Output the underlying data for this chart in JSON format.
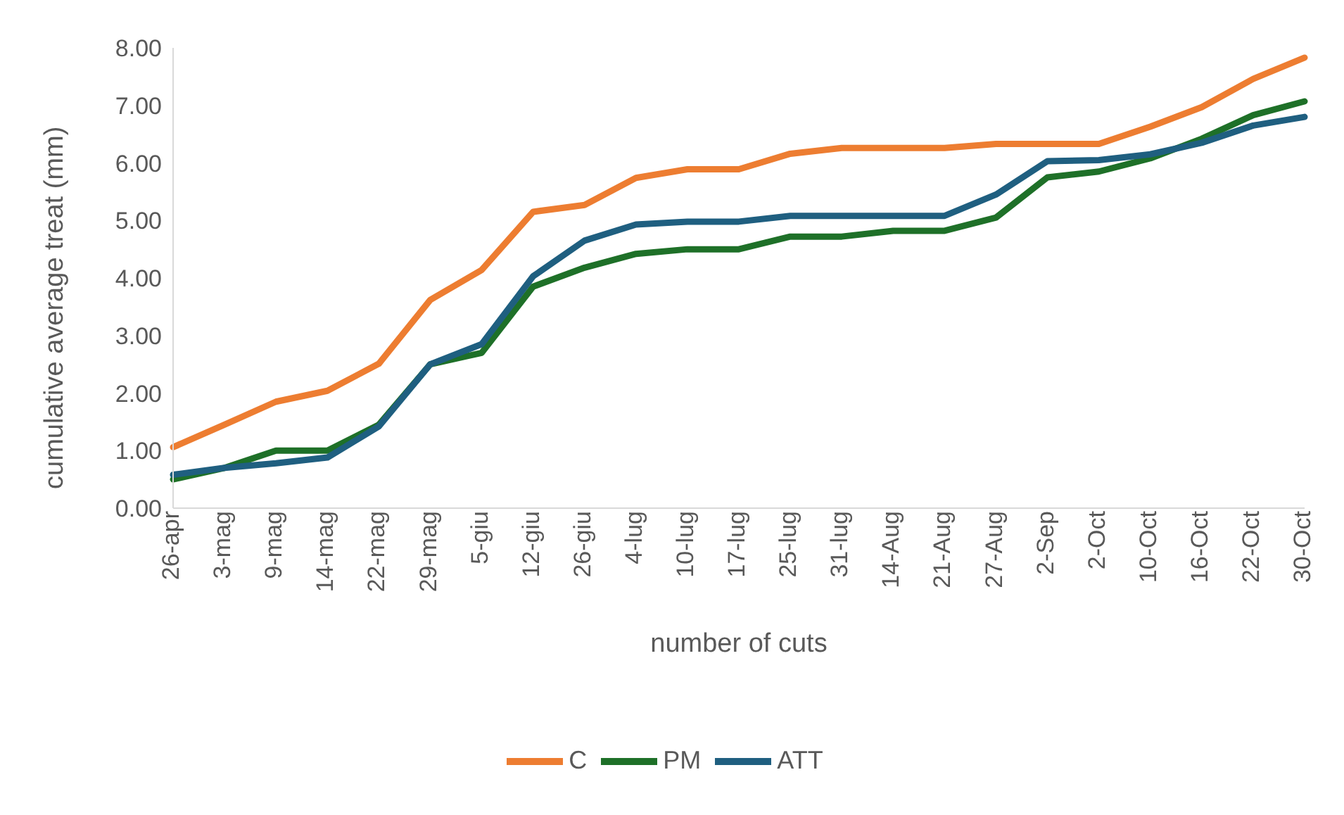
{
  "chart_data": {
    "type": "line",
    "xlabel": "number of cuts",
    "ylabel": "cumulative average treat (mm)",
    "categories": [
      "26-apr",
      "3-mag",
      "9-mag",
      "14-mag",
      "22-mag",
      "29-mag",
      "5-giu",
      "12-giu",
      "26-giu",
      "4-lug",
      "10-lug",
      "17-lug",
      "25-lug",
      "31-lug",
      "14-Aug",
      "21-Aug",
      "27-Aug",
      "2-Sep",
      "2-Oct",
      "10-Oct",
      "16-Oct",
      "22-Oct",
      "30-Oct"
    ],
    "series": [
      {
        "name": "C",
        "color": "#ed7d31",
        "values": [
          1.06,
          1.45,
          1.85,
          2.04,
          2.51,
          3.62,
          4.14,
          5.15,
          5.27,
          5.74,
          5.89,
          5.89,
          6.16,
          6.26,
          6.26,
          6.26,
          6.33,
          6.33,
          6.33,
          6.63,
          6.97,
          7.46,
          7.83
        ]
      },
      {
        "name": "PM",
        "color": "#1e7028",
        "values": [
          0.5,
          0.7,
          1.0,
          1.0,
          1.45,
          2.5,
          2.7,
          3.85,
          4.18,
          4.42,
          4.5,
          4.5,
          4.72,
          4.72,
          4.82,
          4.82,
          5.05,
          5.75,
          5.85,
          6.08,
          6.42,
          6.83,
          7.07
        ]
      },
      {
        "name": "ATT",
        "color": "#1f5f80",
        "values": [
          0.58,
          0.7,
          0.78,
          0.88,
          1.42,
          2.5,
          2.85,
          4.03,
          4.65,
          4.93,
          4.98,
          4.98,
          5.08,
          5.08,
          5.08,
          5.08,
          5.45,
          6.03,
          6.05,
          6.15,
          6.35,
          6.65,
          6.8
        ]
      }
    ],
    "ylim": [
      0,
      8
    ],
    "yticks": [
      {
        "value": 0,
        "label": "0.00"
      },
      {
        "value": 1,
        "label": "1.00"
      },
      {
        "value": 2,
        "label": "2.00"
      },
      {
        "value": 3,
        "label": "3.00"
      },
      {
        "value": 4,
        "label": "4.00"
      },
      {
        "value": 5,
        "label": "5.00"
      },
      {
        "value": 6,
        "label": "6.00"
      },
      {
        "value": 7,
        "label": "7.00"
      },
      {
        "value": 8,
        "label": "8.00"
      }
    ],
    "grid": false,
    "legend": "bottom",
    "marker": "none",
    "line_style": "solid"
  }
}
